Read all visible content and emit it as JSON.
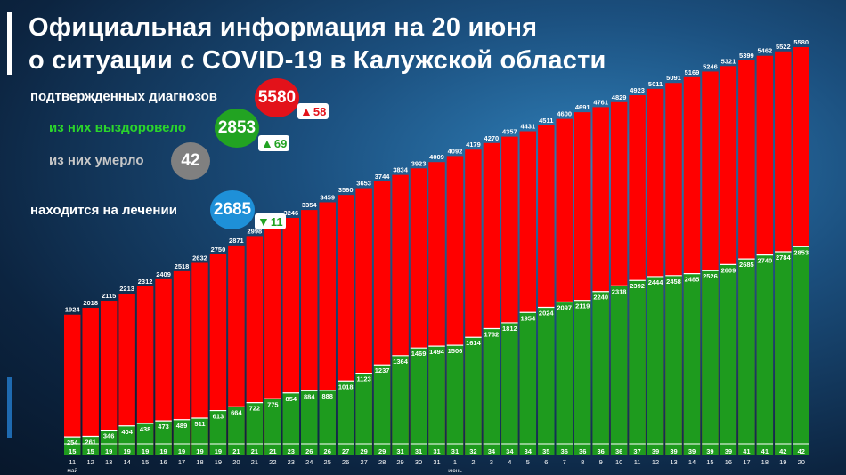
{
  "title_line1": "Официальная информация на 20 июня",
  "title_line2": "о ситуации с COVID-19 в Калужской области",
  "stats": {
    "confirmed": {
      "label": "подтвержденных диагнозов",
      "value": "5580",
      "delta": "58",
      "color": "#e3121a"
    },
    "recovered": {
      "label": "из них выздоровело",
      "value": "2853",
      "delta": "69",
      "color": "#22a322"
    },
    "died": {
      "label": "из них умерло",
      "value": "42",
      "color": "#808080"
    },
    "treatment": {
      "label": "находится на лечении",
      "value": "2685",
      "delta": "11",
      "color": "#1e90d8"
    }
  },
  "arrow_icons": {
    "up": "▲",
    "down": "▼"
  },
  "chart_data": {
    "type": "bar",
    "categories": [
      "11",
      "12",
      "13",
      "14",
      "15",
      "16",
      "17",
      "18",
      "19",
      "20",
      "21",
      "22",
      "23",
      "24",
      "25",
      "26",
      "27",
      "28",
      "29",
      "30",
      "31",
      "1",
      "2",
      "3",
      "4",
      "5",
      "6",
      "7",
      "8",
      "9",
      "10",
      "11",
      "12",
      "13",
      "14",
      "15",
      "16",
      "17",
      "18",
      "19",
      "20"
    ],
    "month_labels": [
      {
        "index": 0,
        "label": "май"
      },
      {
        "index": 21,
        "label": "июнь"
      }
    ],
    "series": [
      {
        "values": [
          1924,
          2018,
          2115,
          2213,
          2312,
          2409,
          2518,
          2632,
          2750,
          2871,
          2998,
          3123,
          3246,
          3354,
          3459,
          3560,
          3653,
          3744,
          3834,
          3923,
          4009,
          4092,
          4179,
          4270,
          4357,
          4431,
          4511,
          4600,
          4691,
          4761,
          4829,
          4923,
          5011,
          5091,
          5169,
          5246,
          5321,
          5399,
          5462,
          5522,
          5580
        ],
        "color": "#ff0000"
      },
      {
        "values": [
          254,
          261,
          346,
          404,
          438,
          473,
          489,
          511,
          613,
          664,
          722,
          775,
          854,
          884,
          888,
          1018,
          1123,
          1237,
          1364,
          1469,
          1494,
          1506,
          1614,
          1732,
          1812,
          1954,
          2024,
          2097,
          2119,
          2240,
          2318,
          2392,
          2444,
          2458,
          2485,
          2526,
          2609,
          2685,
          2740,
          2784,
          2853
        ],
        "color": "#1e9b1e"
      },
      {
        "values": [
          15,
          15,
          19,
          19,
          19,
          19,
          19,
          19,
          19,
          21,
          21,
          21,
          23,
          26,
          26,
          27,
          29,
          29,
          31,
          31,
          31,
          31,
          32,
          34,
          34,
          34,
          35,
          36,
          36,
          36,
          36,
          37,
          39,
          39,
          39,
          39,
          39,
          41,
          41,
          42,
          42
        ],
        "color": "#1e9b1e"
      }
    ],
    "ylim": [
      0,
      5580
    ]
  }
}
